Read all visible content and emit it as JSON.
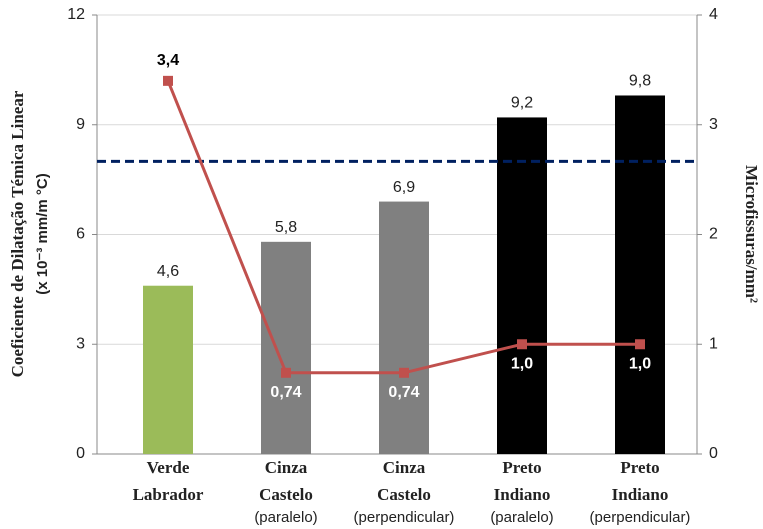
{
  "chart_data": {
    "type": "bar_line",
    "y_label": [
      "Coeficiente de Dilatação Témica Linear",
      "(x 10⁻³ mm/m °C)"
    ],
    "y2_label": "Microfissuras/mm²",
    "categories": [
      [
        "Verde",
        "Labrador"
      ],
      [
        "Cinza",
        "Castelo",
        "(paralelo)"
      ],
      [
        "Cinza",
        "Castelo",
        "(perpendicular)"
      ],
      [
        "Preto",
        "Indiano",
        "(paralelo)"
      ],
      [
        "Preto",
        "Indiano",
        "(perpendicular)"
      ]
    ],
    "series": [
      {
        "type": "bar",
        "colors": [
          "#9bbb59",
          "#808080",
          "#808080",
          "#000000",
          "#000000"
        ],
        "values": [
          4.6,
          5.8,
          6.9,
          9.2,
          9.8
        ],
        "value_labels": [
          "4,6",
          "5,8",
          "6,9",
          "9,2",
          "9,8"
        ]
      },
      {
        "type": "line",
        "axis": "y2",
        "color": "#c0504d",
        "values": [
          3.4,
          0.74,
          0.74,
          1.0,
          1.0
        ],
        "value_labels": [
          "3,4",
          "0,74",
          "0,74",
          "1,0",
          "1,0"
        ]
      }
    ],
    "reference_line": {
      "value": 8,
      "color": "#002060"
    },
    "ylim": [
      0,
      12
    ],
    "yticks": [
      0,
      3,
      6,
      9,
      12
    ],
    "y2lim": [
      0,
      4
    ],
    "y2ticks": [
      0,
      1,
      2,
      3,
      4
    ],
    "grid": true
  }
}
